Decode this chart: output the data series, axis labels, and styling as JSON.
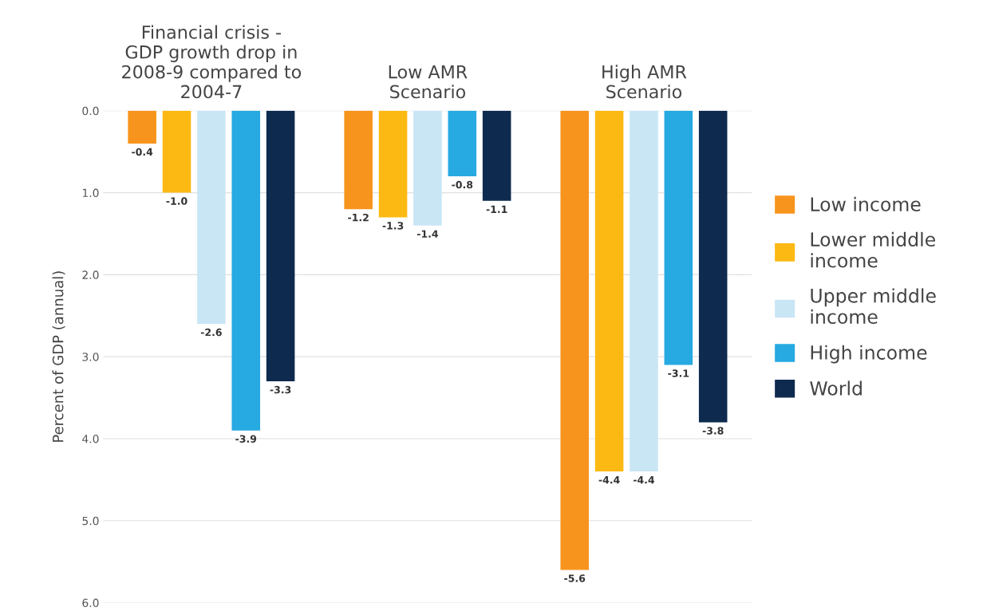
{
  "chart_data": {
    "type": "bar",
    "categories": [
      "Financial crisis -\nGDP growth drop in\n2008-9 compared to\n2004-7",
      "Low AMR\nScenario",
      "High AMR\nScenario"
    ],
    "ylabel": "Percent of GDP (annual)",
    "ylim": [
      -6,
      0
    ],
    "yticks": [
      {
        "value": 0,
        "label": "0.0"
      },
      {
        "value": -1,
        "label": "1.0"
      },
      {
        "value": -2,
        "label": "2.0"
      },
      {
        "value": -3,
        "label": "3.0"
      },
      {
        "value": -4,
        "label": "4.0"
      },
      {
        "value": -5,
        "label": "5.0"
      },
      {
        "value": -6,
        "label": "6.0"
      }
    ],
    "grid": "y",
    "legend": "right",
    "series": [
      {
        "name": "Low income",
        "color": "#f7941d",
        "values": [
          -0.4,
          -1.2,
          -5.6
        ],
        "value_labels": [
          "-0.4",
          "-1.2",
          "-5.6"
        ]
      },
      {
        "name": "Lower middle income",
        "color": "#fdb913",
        "values": [
          -1.0,
          -1.3,
          -4.4
        ],
        "value_labels": [
          "-1.0",
          "-1.3",
          "-4.4"
        ]
      },
      {
        "name": "Upper middle income",
        "color": "#c9e6f5",
        "values": [
          -2.6,
          -1.4,
          -4.4
        ],
        "value_labels": [
          "-2.6",
          "-1.4",
          "-4.4"
        ]
      },
      {
        "name": "High income",
        "color": "#27a9e1",
        "values": [
          -3.9,
          -0.8,
          -3.1
        ],
        "value_labels": [
          "-3.9",
          "-0.8",
          "-3.1"
        ]
      },
      {
        "name": "World",
        "color": "#0e2a4f",
        "values": [
          -3.3,
          -1.1,
          -3.8
        ],
        "value_labels": [
          "-3.3",
          "-1.1",
          "-3.8"
        ]
      }
    ]
  }
}
